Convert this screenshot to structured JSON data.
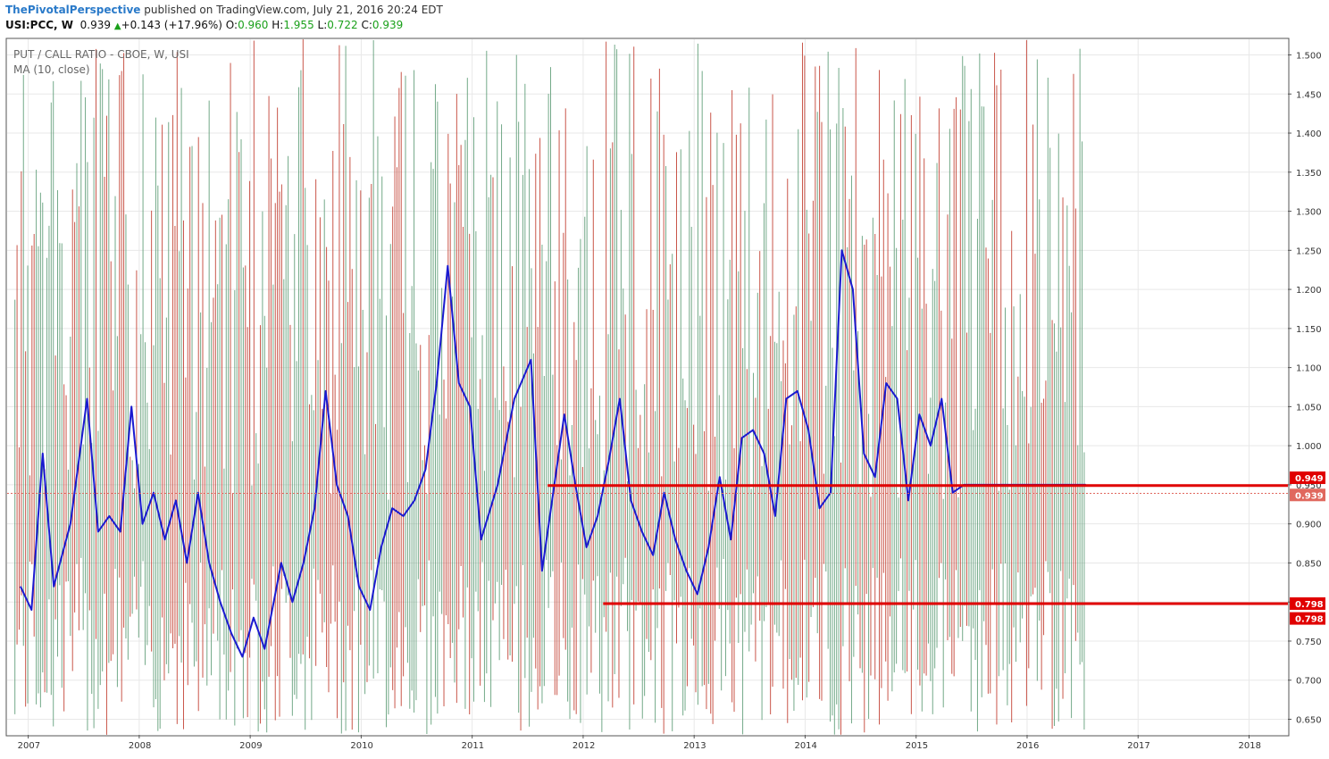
{
  "header": {
    "author": "ThePivotalPerspective",
    "published": " published on TradingView.com, July 21, 2016 20:24 EDT",
    "symbol": "USI:PCC, W",
    "last": "0.939",
    "change": "+0.143 (+17.96%)",
    "open_label": "O:",
    "open": "0.960",
    "high_label": "H:",
    "high": "1.955",
    "low_label": "L:",
    "low": "0.722",
    "close_label": "C:",
    "close": "0.939"
  },
  "legend": {
    "title": "PUT / CALL RATIO - CBOE, W, USI",
    "ma": "MA (10, close)"
  },
  "colors": {
    "up_bar": "#5b9b74",
    "down_bar": "#c0392b",
    "ma_line": "#1a1ad0",
    "level_line": "#e00000",
    "last_price_tag": "#e0685e",
    "grid": "#e8e8e8"
  },
  "chart_data": {
    "type": "line",
    "ylim": [
      0.63,
      1.52
    ],
    "y_ticks": [
      "0.650",
      "0.700",
      "0.750",
      "0.800",
      "0.850",
      "0.900",
      "0.950",
      "1.000",
      "1.050",
      "1.100",
      "1.150",
      "1.200",
      "1.250",
      "1.300",
      "1.350",
      "1.400",
      "1.450",
      "1.500"
    ],
    "x_ticks": [
      "2007",
      "2008",
      "2009",
      "2010",
      "2011",
      "2012",
      "2013",
      "2014",
      "2015",
      "2016",
      "2017",
      "2018"
    ],
    "ma_series": {
      "x": [
        2006.95,
        2007.05,
        2007.15,
        2007.25,
        2007.4,
        2007.55,
        2007.65,
        2007.75,
        2007.85,
        2007.95,
        2008.05,
        2008.15,
        2008.25,
        2008.35,
        2008.45,
        2008.55,
        2008.65,
        2008.75,
        2008.85,
        2008.95,
        2009.05,
        2009.15,
        2009.3,
        2009.4,
        2009.5,
        2009.6,
        2009.7,
        2009.8,
        2009.9,
        2010.0,
        2010.1,
        2010.2,
        2010.3,
        2010.4,
        2010.5,
        2010.6,
        2010.7,
        2010.8,
        2010.9,
        2011.0,
        2011.1,
        2011.25,
        2011.4,
        2011.55,
        2011.65,
        2011.75,
        2011.85,
        2011.95,
        2012.05,
        2012.15,
        2012.25,
        2012.35,
        2012.45,
        2012.55,
        2012.65,
        2012.75,
        2012.85,
        2012.95,
        2013.05,
        2013.15,
        2013.25,
        2013.35,
        2013.45,
        2013.55,
        2013.65,
        2013.75,
        2013.85,
        2013.95,
        2014.05,
        2014.15,
        2014.25,
        2014.35,
        2014.45,
        2014.55,
        2014.65,
        2014.75,
        2014.85,
        2014.95,
        2015.05,
        2015.15,
        2015.25,
        2015.35,
        2015.45,
        2015.55,
        2015.65,
        2015.72,
        2015.8,
        2015.9,
        2016.0,
        2016.1,
        2016.2,
        2016.27,
        2016.35,
        2016.45,
        2016.5,
        2016.55
      ],
      "y": [
        0.82,
        0.79,
        0.99,
        0.82,
        0.9,
        1.06,
        0.89,
        0.91,
        0.89,
        1.05,
        0.9,
        0.94,
        0.88,
        0.93,
        0.85,
        0.94,
        0.85,
        0.8,
        0.76,
        0.73,
        0.78,
        0.74,
        0.85,
        0.8,
        0.85,
        0.92,
        1.07,
        0.95,
        0.91,
        0.82,
        0.79,
        0.87,
        0.92,
        0.91,
        0.93,
        0.97,
        1.08,
        1.23,
        1.08,
        1.05,
        0.88,
        0.95,
        1.06,
        1.11,
        0.84,
        0.94,
        1.04,
        0.95,
        0.87,
        0.91,
        0.98,
        1.06,
        0.93,
        0.89,
        0.86,
        0.94,
        0.88,
        0.84,
        0.81,
        0.87,
        0.96,
        0.88,
        1.01,
        1.02,
        0.99,
        0.91,
        1.06,
        1.07,
        1.02,
        0.92,
        0.94,
        1.25,
        1.2,
        0.99,
        0.96,
        1.08,
        1.06,
        0.93,
        1.04,
        1.0,
        1.06,
        0.94,
        0.95,
        0.95,
        0.95,
        0.95,
        0.95,
        0.95,
        0.95,
        0.95,
        0.95,
        0.95,
        0.95,
        0.95,
        0.95,
        0.95
      ]
    },
    "levels": [
      {
        "value": 0.949,
        "label": "0.949",
        "from_year": 2011.7
      },
      {
        "value": 0.798,
        "label": "0.798",
        "from_year": 2012.2
      }
    ],
    "last_price": {
      "value": 0.939,
      "label": "0.939"
    },
    "extra_tag": {
      "value": 0.798,
      "label": "0.798"
    }
  }
}
